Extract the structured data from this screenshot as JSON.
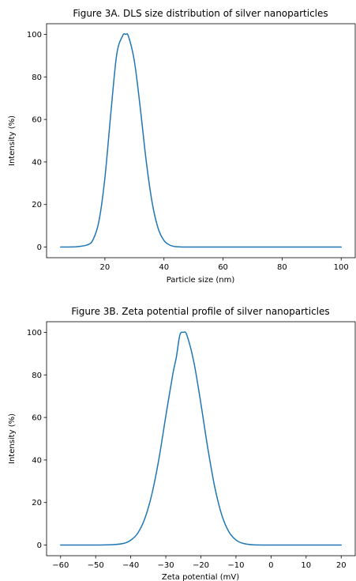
{
  "colors": {
    "line": "#1f77b4",
    "axis": "#000000",
    "background": "#ffffff"
  },
  "chart_data": [
    {
      "type": "line",
      "title": "Figure 3A. DLS size distribution of silver nanoparticles",
      "xlabel": "Particle size (nm)",
      "ylabel": "Intensity (%)",
      "xlim": [
        0.25,
        104.75
      ],
      "ylim": [
        -5,
        105
      ],
      "xticks": [
        20,
        40,
        60,
        80,
        100
      ],
      "yticks": [
        0,
        20,
        40,
        60,
        80,
        100
      ],
      "grid": false,
      "legend": "none",
      "series": [
        {
          "x": [
            5,
            10,
            14,
            16,
            18,
            20,
            22,
            24,
            26,
            27,
            28,
            30,
            32,
            34,
            36,
            38,
            40,
            42,
            44,
            46,
            50,
            60,
            70,
            80,
            90,
            100
          ],
          "values": [
            0,
            0.1,
            1.0,
            3.5,
            12.3,
            32.5,
            62.8,
            90.5,
            99.3,
            100,
            99.0,
            87.2,
            65.1,
            40.3,
            20.9,
            8.9,
            3.1,
            0.9,
            0.2,
            0.04,
            0,
            0,
            0,
            0,
            0,
            0
          ]
        }
      ]
    },
    {
      "type": "line",
      "title": "Figure 3B. Zeta potential profile of silver nanoparticles",
      "xlabel": "Zeta potential (mV)",
      "ylabel": "Intensity (%)",
      "xlim": [
        -64,
        24
      ],
      "ylim": [
        -5,
        105
      ],
      "xticks": [
        -60,
        -50,
        -40,
        -30,
        -20,
        -10,
        0,
        10,
        20
      ],
      "xticklabels": [
        "−60",
        "−50",
        "−40",
        "−30",
        "−20",
        "−10",
        "0",
        "10",
        "20"
      ],
      "yticks": [
        0,
        20,
        40,
        60,
        80,
        100
      ],
      "grid": false,
      "legend": "none",
      "series": [
        {
          "x": [
            -60,
            -50,
            -45,
            -42,
            -40,
            -38,
            -36,
            -34,
            -32,
            -30,
            -28,
            -27,
            -26,
            -25,
            -24,
            -22,
            -20,
            -18,
            -16,
            -14,
            -12,
            -10,
            -8,
            -5,
            0,
            10,
            20
          ],
          "values": [
            0,
            0,
            0.2,
            0.8,
            2.3,
            5.6,
            12.4,
            23.8,
            40.2,
            60.7,
            80.4,
            88.3,
            98.7,
            100,
            98.7,
            86.0,
            66.5,
            45.2,
            26.9,
            13.9,
            6.2,
            2.4,
            0.8,
            0.1,
            0,
            0,
            0
          ]
        }
      ]
    }
  ]
}
